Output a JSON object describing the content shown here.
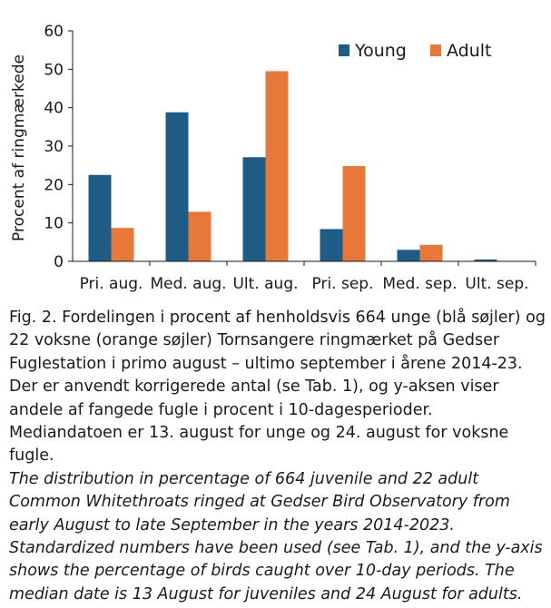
{
  "chart_data": {
    "type": "bar",
    "title": "",
    "xlabel": "",
    "ylabel": "Procent af ringmærkede",
    "ylim": [
      0,
      60
    ],
    "yticks": [
      0,
      10,
      20,
      30,
      40,
      50,
      60
    ],
    "categories": [
      "Pri. aug.",
      "Med. aug.",
      "Ult. aug.",
      "Pri. sep.",
      "Med. sep.",
      "Ult. sep."
    ],
    "series": [
      {
        "name": "Young",
        "color": "#1f5c85",
        "values": [
          22.5,
          38.8,
          27.1,
          8.4,
          3.0,
          0.5
        ]
      },
      {
        "name": "Adult",
        "color": "#e8783a",
        "values": [
          8.7,
          12.9,
          49.5,
          24.8,
          4.3,
          0
        ]
      }
    ],
    "legend_position": "top-right",
    "grid": false
  },
  "caption": {
    "danish": "Fig. 2. Fordelingen i procent af henholdsvis 664 unge (blå søjler) og 22 voksne (orange søjler) Tornsangere ringmærket på Gedser Fuglestation i primo august – ultimo september i årene 2014-23. Der er anvendt korrigerede antal (se Tab. 1), og y-aksen viser andele af fangede fugle i procent i 10-dagesperioder. Mediandatoen er 13. august for unge og 24. august for voksne fugle.",
    "english": "The distribution in percentage of 664 juvenile and 22 adult Common Whitethroats ringed at Gedser Bird Observatory from early August to late September in the years 2014-2023. Standardized numbers have been used (see Tab. 1), and the y-axis shows the percentage of birds caught over 10-day periods. The median date is 13 August for juveniles and 24 August for adults."
  }
}
